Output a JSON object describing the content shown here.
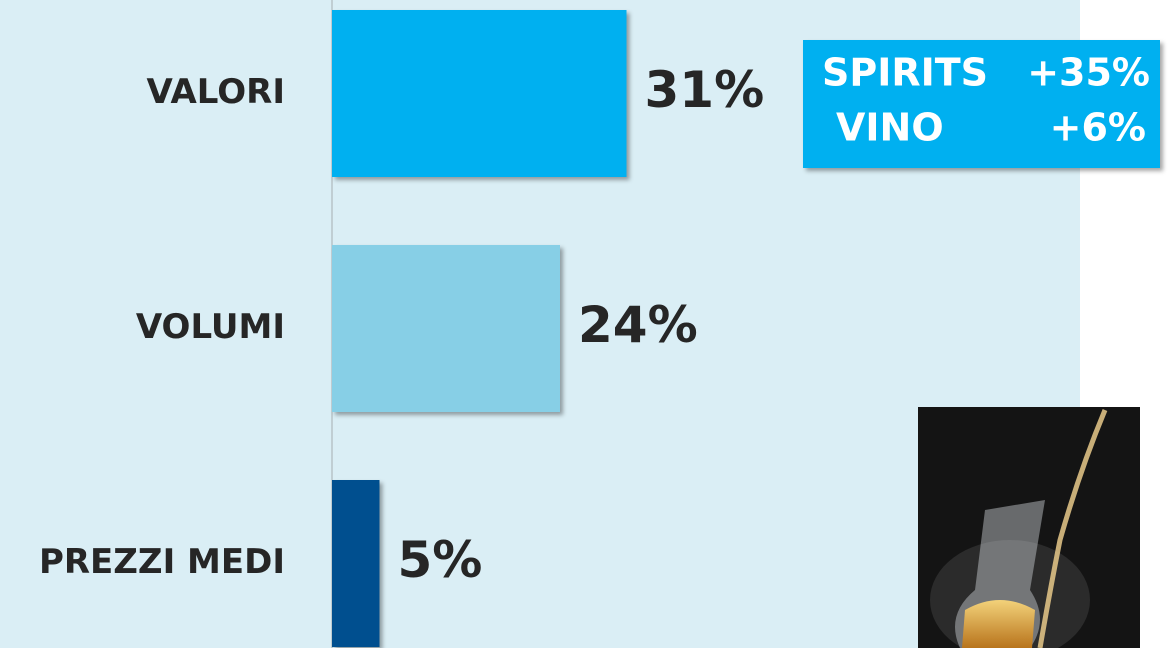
{
  "chart_data": {
    "type": "bar",
    "orientation": "horizontal",
    "categories": [
      "VALORI",
      "VOLUMI",
      "PREZZI MEDI"
    ],
    "values": [
      31,
      24,
      5
    ],
    "value_labels": [
      "31%",
      "24%",
      "5%"
    ],
    "colors": [
      "#00b0f0",
      "#87cfe6",
      "#004f8f"
    ],
    "annotations": [
      {
        "label": "SPIRITS",
        "value": "+35%"
      },
      {
        "label": "VINO",
        "value": "+6%"
      }
    ]
  }
}
